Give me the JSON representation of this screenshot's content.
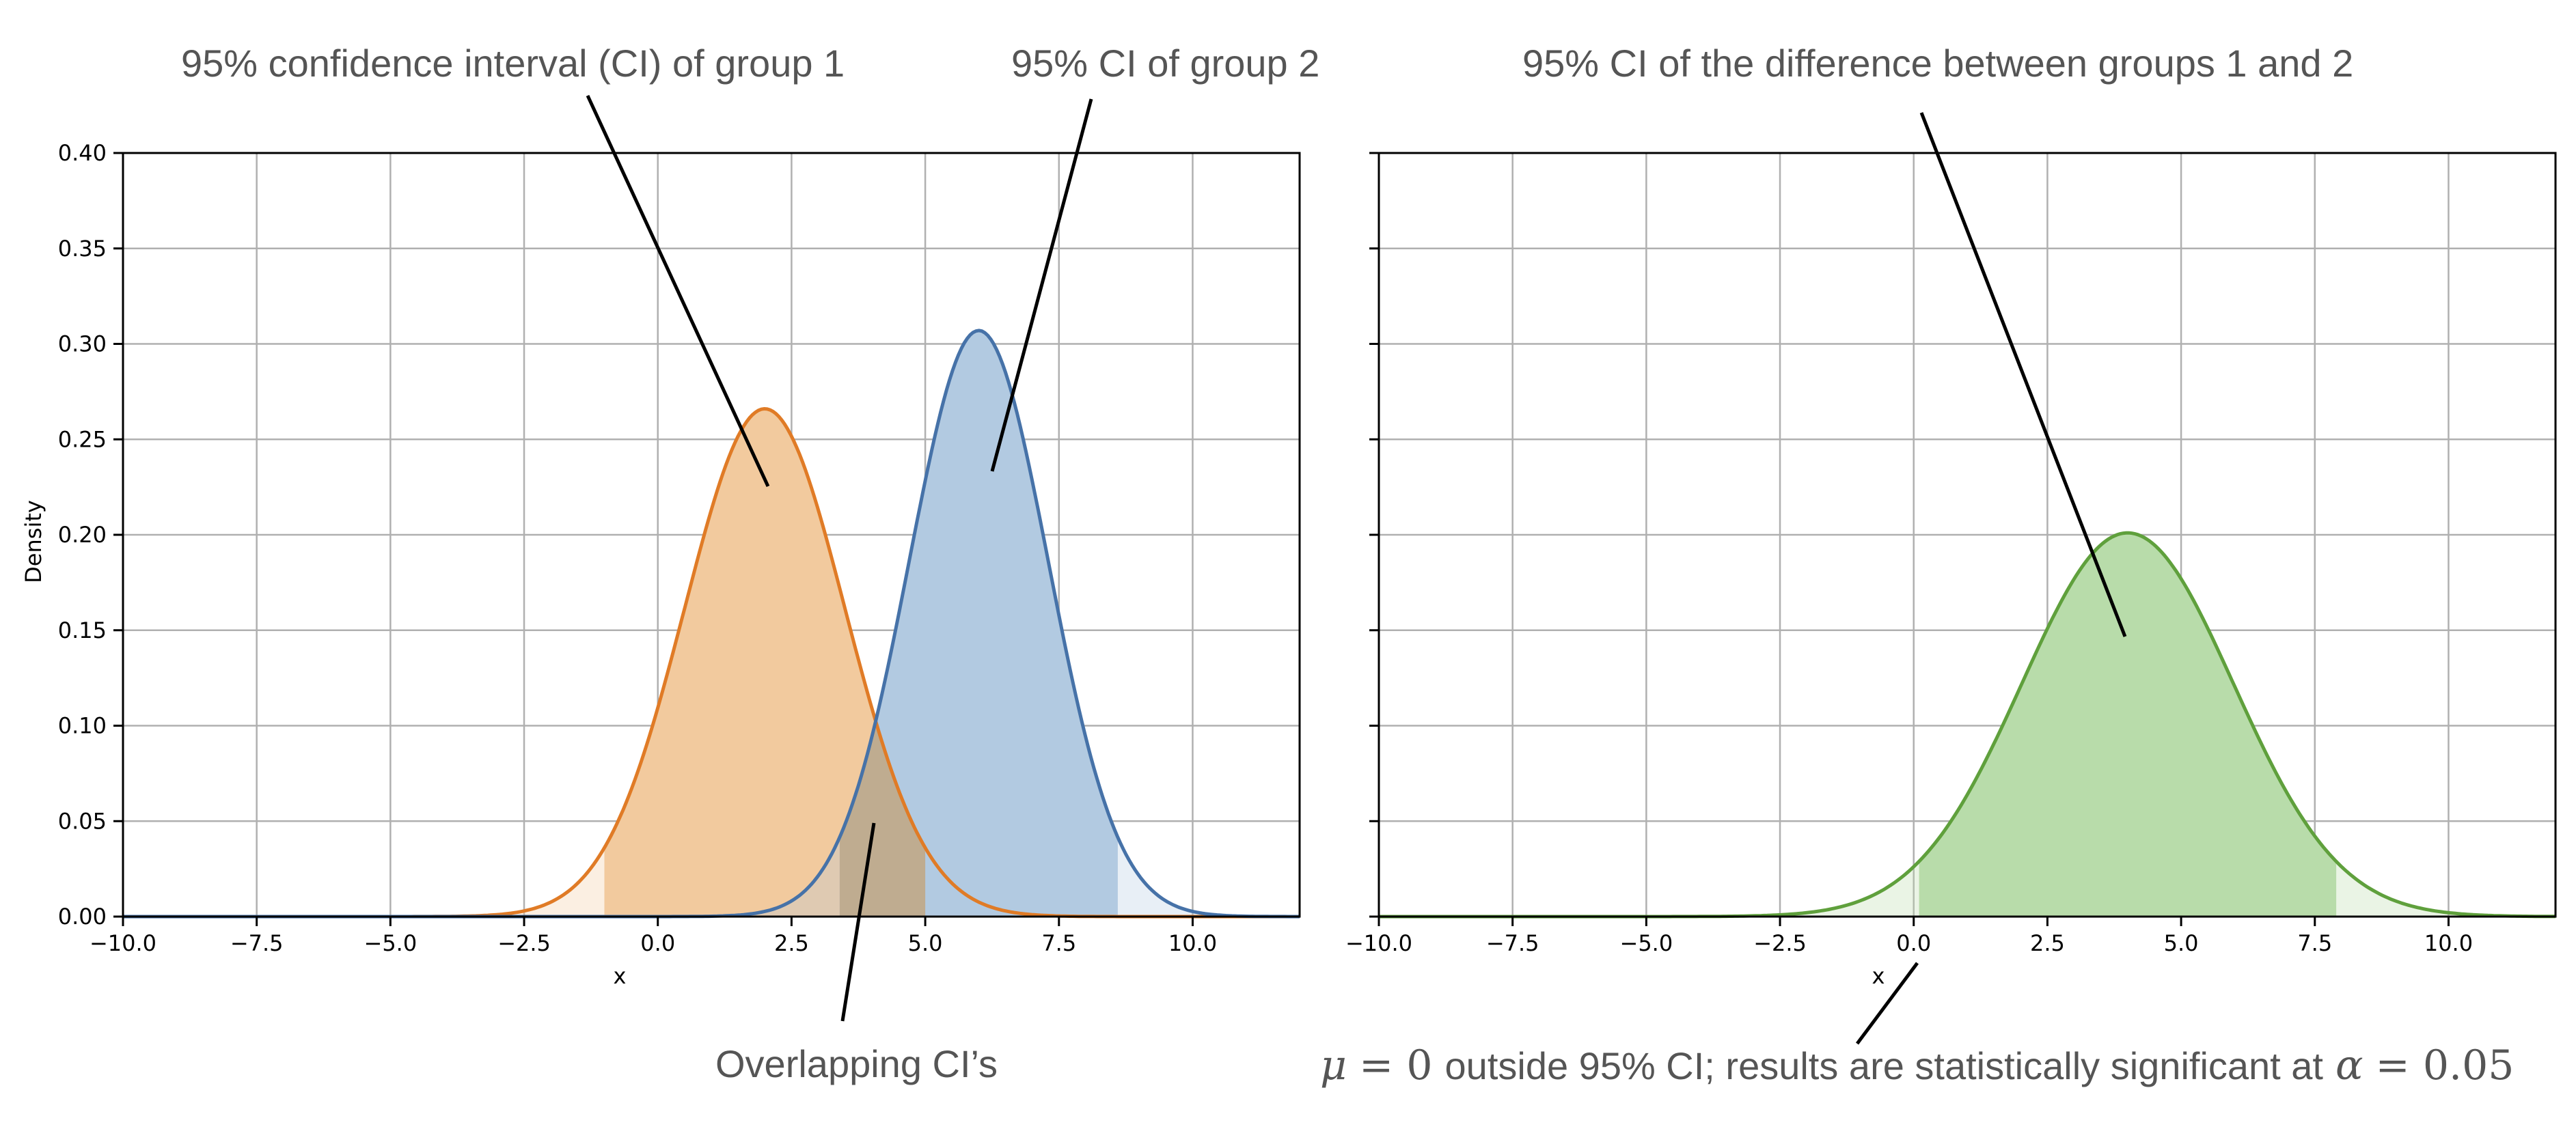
{
  "colors": {
    "group1_line": "#e07b26",
    "group1_fill": "#f2ca9e",
    "group2_line": "#4672a8",
    "group2_fill": "#b2cae1",
    "overlap_fill": "#bfac90",
    "diff_line": "#5fa03c",
    "diff_fill": "#b8dcaa",
    "grid": "#b0b0b0",
    "annotation_text": "#555555"
  },
  "annotations": {
    "group1_ci": "95% confidence interval (CI) of group 1",
    "group2_ci": "95% CI of group 2",
    "overlap": "Overlapping CI’s",
    "diff_ci": "95% CI of the difference between groups 1 and 2",
    "sig_mu": "μ",
    "sig_eq1": "= 0",
    "sig_text": "outside 95% CI; results are statistically significant at",
    "sig_alpha": "α",
    "sig_eq2": "= 0.05"
  },
  "chart_data": [
    {
      "type": "area",
      "xlabel": "x",
      "ylabel": "Density",
      "xlim": [
        -10,
        12
      ],
      "ylim": [
        0,
        0.4
      ],
      "xticks": [
        -10,
        -7.5,
        -5,
        -2.5,
        0,
        2.5,
        5,
        7.5,
        10
      ],
      "xtick_labels": [
        "−10.0",
        "−7.5",
        "−5.0",
        "−2.5",
        "0.0",
        "2.5",
        "5.0",
        "7.5",
        "10.0"
      ],
      "yticks": [
        0,
        0.05,
        0.1,
        0.15,
        0.2,
        0.25,
        0.3,
        0.35,
        0.4
      ],
      "ytick_labels": [
        "0.00",
        "0.05",
        "0.10",
        "0.15",
        "0.20",
        "0.25",
        "0.30",
        "0.35",
        "0.40"
      ],
      "grid": true,
      "series": [
        {
          "key": "group1",
          "distribution": "normal",
          "mean": 2.0,
          "sd": 1.5,
          "peak_density": 0.266,
          "ci95": [
            -1.0,
            5.0
          ]
        },
        {
          "key": "group2",
          "distribution": "normal",
          "mean": 6.0,
          "sd": 1.3,
          "peak_density": 0.307,
          "ci95": [
            3.4,
            8.6
          ]
        }
      ],
      "overlap_ci": [
        3.4,
        5.0
      ]
    },
    {
      "type": "area",
      "xlabel": "x",
      "xlim": [
        -10,
        12
      ],
      "ylim": [
        0,
        0.4
      ],
      "xticks": [
        -10,
        -7.5,
        -5,
        -2.5,
        0,
        2.5,
        5,
        7.5,
        10
      ],
      "xtick_labels": [
        "−10.0",
        "−7.5",
        "−5.0",
        "−2.5",
        "0.0",
        "2.5",
        "5.0",
        "7.5",
        "10.0"
      ],
      "yticks": [
        0,
        0.05,
        0.1,
        0.15,
        0.2,
        0.25,
        0.3,
        0.35,
        0.4
      ],
      "grid": true,
      "series": [
        {
          "key": "difference",
          "distribution": "normal",
          "mean": 4.0,
          "sd": 1.98,
          "peak_density": 0.201,
          "ci95": [
            0.1,
            7.9
          ]
        }
      ]
    }
  ]
}
